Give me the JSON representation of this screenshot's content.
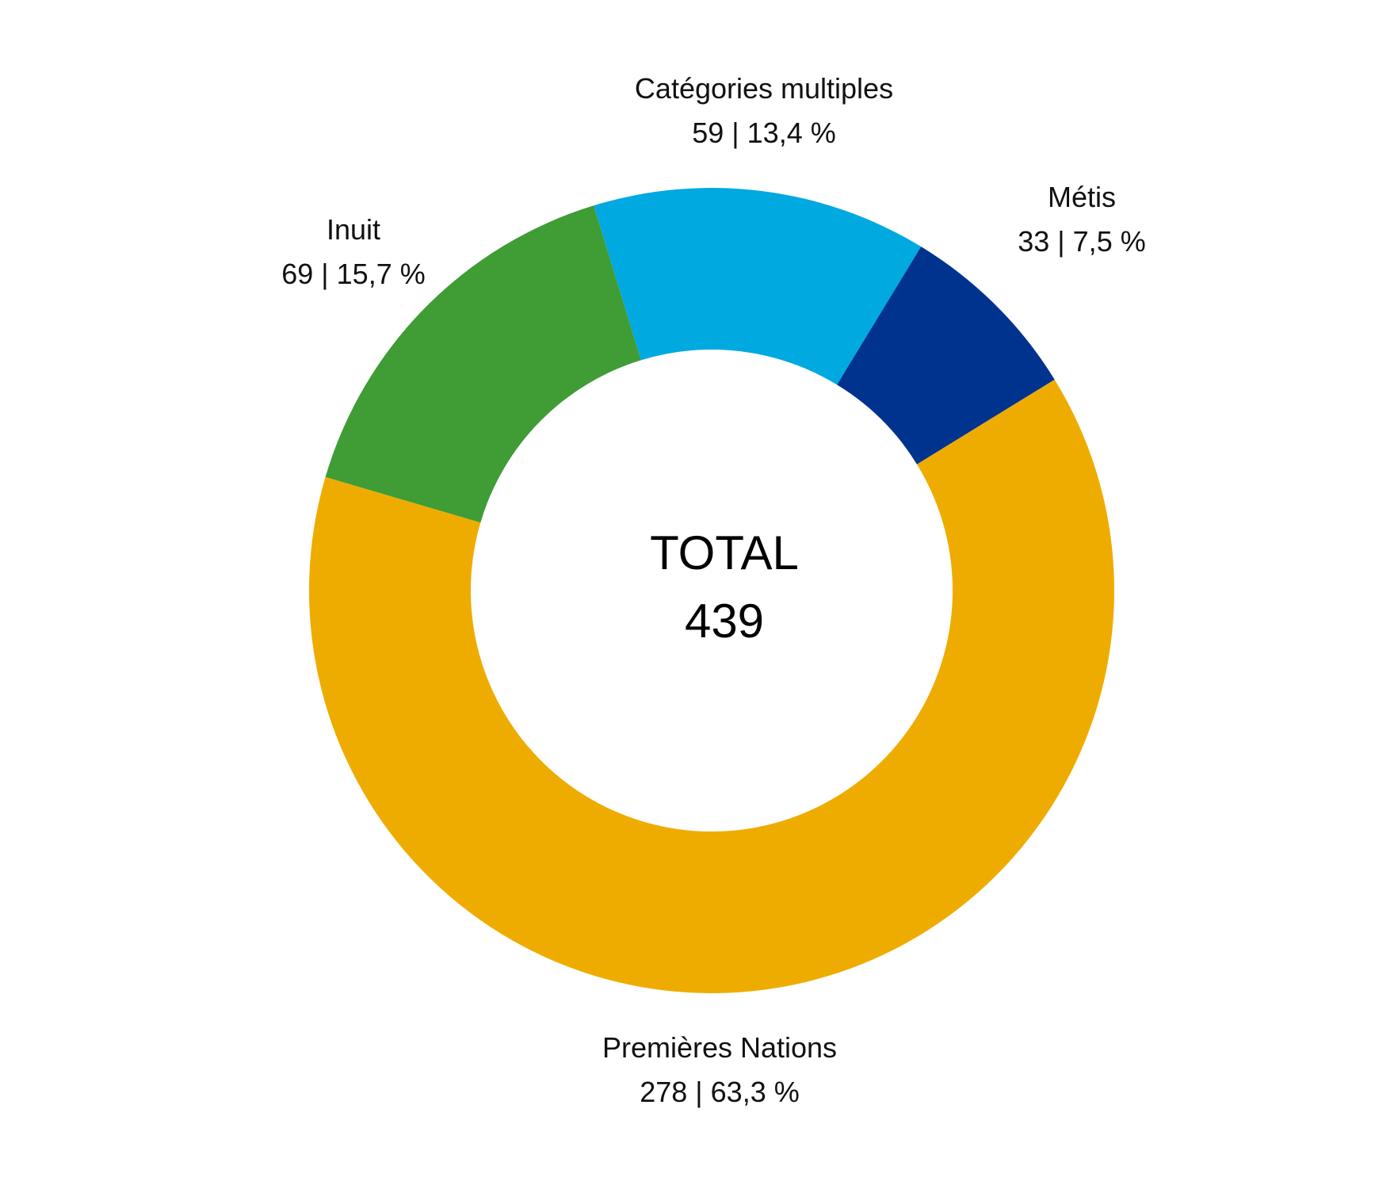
{
  "chart_data": {
    "type": "pie",
    "variant": "donut",
    "center_label": "TOTAL",
    "total": "439",
    "slices": [
      {
        "name": "Premières Nations",
        "value": 278,
        "label": "278 | 63,3 %",
        "color": "#EFAC00"
      },
      {
        "name": "Inuit",
        "value": 69,
        "label": "69 | 15,7 %",
        "color": "#409C35"
      },
      {
        "name": "Catégories multiples",
        "value": 59,
        "label": "59 | 13,4 %",
        "color": "#00A9E0"
      },
      {
        "name": "Métis",
        "value": 33,
        "label": "33 | 7,5 %",
        "color": "#00338E"
      }
    ],
    "legend": "none (labels outside slices)"
  }
}
